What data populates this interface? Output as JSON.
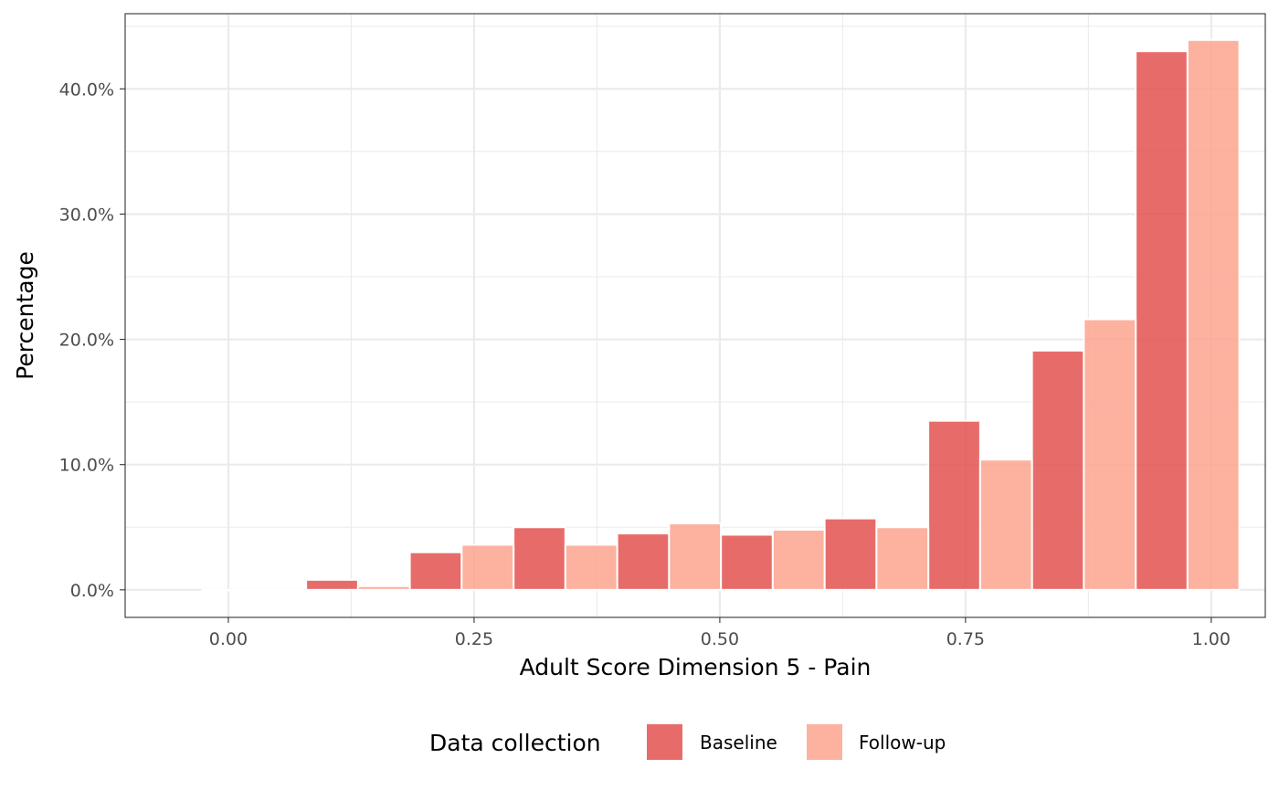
{
  "chart_data": {
    "type": "bar",
    "xlabel": "Adult Score Dimension 5 - Pain",
    "ylabel": "Percentage",
    "x_ticks": [
      "0.00",
      "0.25",
      "0.50",
      "0.75",
      "1.00"
    ],
    "y_ticks": [
      "0.0%",
      "10.0%",
      "20.0%",
      "30.0%",
      "40.0%"
    ],
    "xlim": [
      -0.105,
      1.055
    ],
    "ylim": [
      -2.2,
      46.0
    ],
    "grid": true,
    "legend": {
      "title": "Data collection",
      "position": "bottom"
    },
    "bin_width": 0.05275,
    "series": [
      {
        "name": "Baseline",
        "color": "#e3524f",
        "x": [
          0.0,
          0.1055,
          0.211,
          0.3165,
          0.422,
          0.5275,
          0.633,
          0.7385,
          0.844,
          0.9495
        ],
        "values": [
          0.0,
          0.8,
          3.0,
          5.0,
          4.5,
          4.4,
          5.7,
          13.5,
          19.1,
          43.0
        ]
      },
      {
        "name": "Follow-up",
        "color": "#fca58e",
        "x": [
          0.05275,
          0.15825,
          0.26375,
          0.36925,
          0.47475,
          0.58025,
          0.68575,
          0.79125,
          0.89675,
          1.00225
        ],
        "values": [
          0.0,
          0.3,
          3.6,
          3.6,
          5.3,
          4.8,
          5.0,
          10.4,
          21.6,
          43.9
        ]
      }
    ]
  }
}
